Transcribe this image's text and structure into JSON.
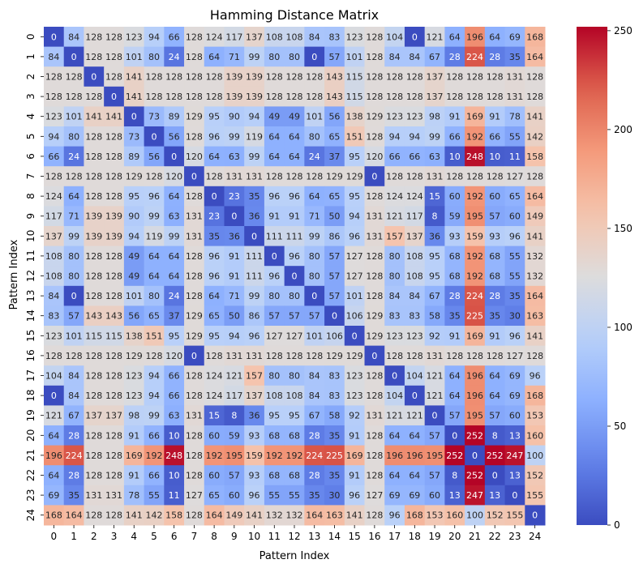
{
  "chart_data": {
    "type": "heatmap",
    "title": "Hamming Distance Matrix",
    "xlabel": "Pattern Index",
    "ylabel": "Pattern Index",
    "x_categories": [
      "0",
      "1",
      "2",
      "3",
      "4",
      "5",
      "6",
      "7",
      "8",
      "9",
      "10",
      "11",
      "12",
      "13",
      "14",
      "15",
      "16",
      "17",
      "18",
      "19",
      "20",
      "21",
      "22",
      "23",
      "24"
    ],
    "y_categories": [
      "0",
      "1",
      "2",
      "3",
      "4",
      "5",
      "6",
      "7",
      "8",
      "9",
      "10",
      "11",
      "12",
      "13",
      "14",
      "15",
      "16",
      "17",
      "18",
      "19",
      "20",
      "21",
      "22",
      "23",
      "24"
    ],
    "colormap": "coolwarm",
    "vmin": 0,
    "vmax": 252,
    "colorbar_ticks": [
      0,
      50,
      100,
      150,
      200,
      250
    ],
    "annotated": true,
    "values": [
      [
        0,
        84,
        128,
        128,
        123,
        94,
        66,
        128,
        124,
        117,
        137,
        108,
        108,
        84,
        83,
        123,
        128,
        104,
        0,
        121,
        64,
        196,
        64,
        69,
        168
      ],
      [
        84,
        0,
        128,
        128,
        101,
        80,
        24,
        128,
        64,
        71,
        99,
        80,
        80,
        0,
        57,
        101,
        128,
        84,
        84,
        67,
        28,
        224,
        28,
        35,
        164
      ],
      [
        128,
        128,
        0,
        128,
        141,
        128,
        128,
        128,
        128,
        139,
        139,
        128,
        128,
        128,
        143,
        115,
        128,
        128,
        128,
        137,
        128,
        128,
        128,
        131,
        128
      ],
      [
        128,
        128,
        128,
        0,
        141,
        128,
        128,
        128,
        128,
        139,
        139,
        128,
        128,
        128,
        143,
        115,
        128,
        128,
        128,
        137,
        128,
        128,
        128,
        131,
        128
      ],
      [
        123,
        101,
        141,
        141,
        0,
        73,
        89,
        129,
        95,
        90,
        94,
        49,
        49,
        101,
        56,
        138,
        129,
        123,
        123,
        98,
        91,
        169,
        91,
        78,
        141
      ],
      [
        94,
        80,
        128,
        128,
        73,
        0,
        56,
        128,
        96,
        99,
        119,
        64,
        64,
        80,
        65,
        151,
        128,
        94,
        94,
        99,
        66,
        192,
        66,
        55,
        142
      ],
      [
        66,
        24,
        128,
        128,
        89,
        56,
        0,
        120,
        64,
        63,
        99,
        64,
        64,
        24,
        37,
        95,
        120,
        66,
        66,
        63,
        10,
        248,
        10,
        11,
        158
      ],
      [
        128,
        128,
        128,
        128,
        129,
        128,
        120,
        0,
        128,
        131,
        131,
        128,
        128,
        128,
        129,
        129,
        0,
        128,
        128,
        131,
        128,
        128,
        128,
        127,
        128
      ],
      [
        124,
        64,
        128,
        128,
        95,
        96,
        64,
        128,
        0,
        23,
        35,
        96,
        96,
        64,
        65,
        95,
        128,
        124,
        124,
        15,
        60,
        192,
        60,
        65,
        164
      ],
      [
        117,
        71,
        139,
        139,
        90,
        99,
        63,
        131,
        23,
        0,
        36,
        91,
        91,
        71,
        50,
        94,
        131,
        121,
        117,
        8,
        59,
        195,
        57,
        60,
        149
      ],
      [
        137,
        99,
        139,
        139,
        94,
        119,
        99,
        131,
        35,
        36,
        0,
        111,
        111,
        99,
        86,
        96,
        131,
        157,
        137,
        36,
        93,
        159,
        93,
        96,
        141
      ],
      [
        108,
        80,
        128,
        128,
        49,
        64,
        64,
        128,
        96,
        91,
        111,
        0,
        96,
        80,
        57,
        127,
        128,
        80,
        108,
        95,
        68,
        192,
        68,
        55,
        132
      ],
      [
        108,
        80,
        128,
        128,
        49,
        64,
        64,
        128,
        96,
        91,
        111,
        96,
        0,
        80,
        57,
        127,
        128,
        80,
        108,
        95,
        68,
        192,
        68,
        55,
        132
      ],
      [
        84,
        0,
        128,
        128,
        101,
        80,
        24,
        128,
        64,
        71,
        99,
        80,
        80,
        0,
        57,
        101,
        128,
        84,
        84,
        67,
        28,
        224,
        28,
        35,
        164
      ],
      [
        83,
        57,
        143,
        143,
        56,
        65,
        37,
        129,
        65,
        50,
        86,
        57,
        57,
        57,
        0,
        106,
        129,
        83,
        83,
        58,
        35,
        225,
        35,
        30,
        163
      ],
      [
        123,
        101,
        115,
        115,
        138,
        151,
        95,
        129,
        95,
        94,
        96,
        127,
        127,
        101,
        106,
        0,
        129,
        123,
        123,
        92,
        91,
        169,
        91,
        96,
        141
      ],
      [
        128,
        128,
        128,
        128,
        129,
        128,
        120,
        0,
        128,
        131,
        131,
        128,
        128,
        128,
        129,
        129,
        0,
        128,
        128,
        131,
        128,
        128,
        128,
        127,
        128
      ],
      [
        104,
        84,
        128,
        128,
        123,
        94,
        66,
        128,
        124,
        121,
        157,
        80,
        80,
        84,
        83,
        123,
        128,
        0,
        104,
        121,
        64,
        196,
        64,
        69,
        96
      ],
      [
        0,
        84,
        128,
        128,
        123,
        94,
        66,
        128,
        124,
        117,
        137,
        108,
        108,
        84,
        83,
        123,
        128,
        104,
        0,
        121,
        64,
        196,
        64,
        69,
        168
      ],
      [
        121,
        67,
        137,
        137,
        98,
        99,
        63,
        131,
        15,
        8,
        36,
        95,
        95,
        67,
        58,
        92,
        131,
        121,
        121,
        0,
        57,
        195,
        57,
        60,
        153
      ],
      [
        64,
        28,
        128,
        128,
        91,
        66,
        10,
        128,
        60,
        59,
        93,
        68,
        68,
        28,
        35,
        91,
        128,
        64,
        64,
        57,
        0,
        252,
        8,
        13,
        160
      ],
      [
        196,
        224,
        128,
        128,
        169,
        192,
        248,
        128,
        192,
        195,
        159,
        192,
        192,
        224,
        225,
        169,
        128,
        196,
        196,
        195,
        252,
        0,
        252,
        247,
        100
      ],
      [
        64,
        28,
        128,
        128,
        91,
        66,
        10,
        128,
        60,
        57,
        93,
        68,
        68,
        28,
        35,
        91,
        128,
        64,
        64,
        57,
        8,
        252,
        0,
        13,
        152
      ],
      [
        69,
        35,
        131,
        131,
        78,
        55,
        11,
        127,
        65,
        60,
        96,
        55,
        55,
        35,
        30,
        96,
        127,
        69,
        69,
        60,
        13,
        247,
        13,
        0,
        155
      ],
      [
        168,
        164,
        128,
        128,
        141,
        142,
        158,
        128,
        164,
        149,
        141,
        132,
        132,
        164,
        163,
        141,
        128,
        96,
        168,
        153,
        160,
        100,
        152,
        155,
        0
      ]
    ]
  }
}
